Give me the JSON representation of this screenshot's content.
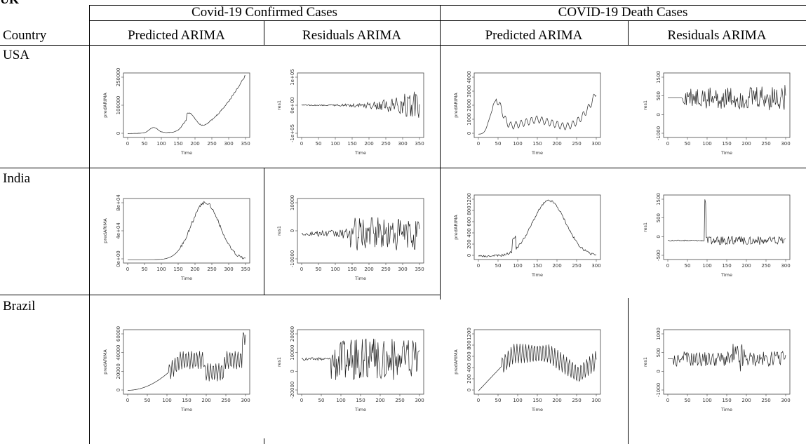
{
  "heading": "UK",
  "header": {
    "confirmed_group": "Covid-19 Confirmed Cases",
    "death_group": "COVID-19 Death Cases",
    "country_col": "Country",
    "sub_cols": [
      "Predicted ARIMA",
      "Residuals ARIMA",
      "Predicted ARIMA",
      "Residuals ARIMA"
    ]
  },
  "rows": [
    {
      "country": "USA"
    },
    {
      "country": "India"
    },
    {
      "country": "Brazil"
    }
  ],
  "plots": [
    {
      "id": "usa-conf-pred",
      "ylabel": "predARIMA",
      "xlabel": "Time",
      "xticks": [
        "0",
        "50",
        "100",
        "150",
        "200",
        "250",
        "300",
        "350"
      ],
      "yticks": [
        "0",
        "100000",
        "250000"
      ],
      "kind": "usa_conf_pred"
    },
    {
      "id": "usa-conf-res",
      "ylabel": "res1",
      "xlabel": "Time",
      "xticks": [
        "0",
        "50",
        "100",
        "150",
        "200",
        "250",
        "300",
        "350"
      ],
      "yticks": [
        "-1e+05",
        "0e+00",
        "1e+05"
      ],
      "kind": "usa_conf_res"
    },
    {
      "id": "usa-death-pred",
      "ylabel": "predARIMA",
      "xlabel": "Time",
      "xticks": [
        "0",
        "50",
        "100",
        "150",
        "200",
        "250",
        "300"
      ],
      "yticks": [
        "0",
        "1000",
        "2000",
        "3000",
        "4000"
      ],
      "kind": "usa_death_pred"
    },
    {
      "id": "usa-death-res",
      "ylabel": "res1",
      "xlabel": "Time",
      "xticks": [
        "0",
        "50",
        "100",
        "150",
        "200",
        "250",
        "300"
      ],
      "yticks": [
        "-1000",
        "0",
        "500",
        "1500"
      ],
      "kind": "usa_death_res"
    },
    {
      "id": "india-conf-pred",
      "ylabel": "predARIMA",
      "xlabel": "Time",
      "xticks": [
        "0",
        "50",
        "100",
        "150",
        "200",
        "250",
        "300",
        "350"
      ],
      "yticks": [
        "0e+00",
        "4e+04",
        "8e+04"
      ],
      "kind": "india_conf_pred"
    },
    {
      "id": "india-conf-res",
      "ylabel": "res1",
      "xlabel": "Time",
      "xticks": [
        "0",
        "50",
        "100",
        "150",
        "200",
        "250",
        "300",
        "350"
      ],
      "yticks": [
        "-10000",
        "0",
        "10000"
      ],
      "kind": "india_conf_res"
    },
    {
      "id": "india-death-pred",
      "ylabel": "predARIMA",
      "xlabel": "Time",
      "xticks": [
        "0",
        "50",
        "100",
        "150",
        "200",
        "250",
        "300"
      ],
      "yticks": [
        "0",
        "200",
        "400",
        "600",
        "800",
        "1200"
      ],
      "kind": "india_death_pred"
    },
    {
      "id": "india-death-res",
      "ylabel": "res1",
      "xlabel": "Time",
      "xticks": [
        "0",
        "50",
        "100",
        "150",
        "200",
        "250",
        "300"
      ],
      "yticks": [
        "-500",
        "0",
        "500",
        "1500"
      ],
      "kind": "india_death_res"
    },
    {
      "id": "brazil-conf-pred",
      "ylabel": "predARIMA",
      "xlabel": "Time",
      "xticks": [
        "0",
        "50",
        "100",
        "150",
        "200",
        "250",
        "300"
      ],
      "yticks": [
        "0",
        "20000",
        "40000",
        "60000"
      ],
      "kind": "brazil_conf_pred"
    },
    {
      "id": "brazil-conf-res",
      "ylabel": "res1",
      "xlabel": "Time",
      "xticks": [
        "0",
        "50",
        "100",
        "150",
        "200",
        "250",
        "300"
      ],
      "yticks": [
        "-20000",
        "0",
        "10000",
        "20000"
      ],
      "kind": "brazil_conf_res"
    },
    {
      "id": "brazil-death-pred",
      "ylabel": "predARIMA",
      "xlabel": "Time",
      "xticks": [
        "0",
        "50",
        "100",
        "150",
        "200",
        "250",
        "300"
      ],
      "yticks": [
        "0",
        "200",
        "400",
        "600",
        "800",
        "1200"
      ],
      "kind": "brazil_death_pred"
    },
    {
      "id": "brazil-death-res",
      "ylabel": "res1",
      "xlabel": "Time",
      "xticks": [
        "0",
        "50",
        "100",
        "150",
        "200",
        "250",
        "300"
      ],
      "yticks": [
        "-1000",
        "0",
        "500",
        "1000"
      ],
      "kind": "brazil_death_res"
    }
  ]
}
